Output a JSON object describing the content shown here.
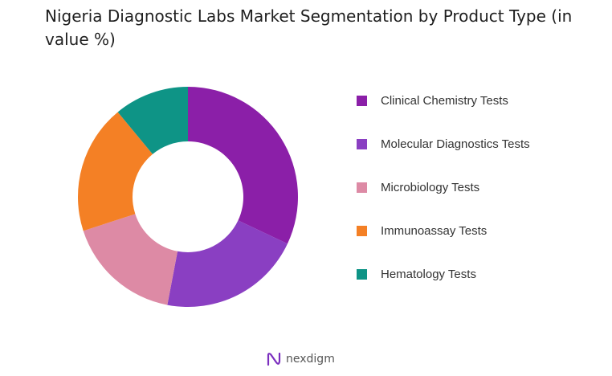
{
  "chart_data": {
    "type": "pie",
    "title": "Nigeria Diagnostic Labs Market Segmentation by Product Type (in value %)",
    "categories": [
      "Clinical Chemistry Tests",
      "Molecular Diagnostics Tests",
      "Microbiology Tests",
      "Immunoassay Tests",
      "Hematology Tests"
    ],
    "values": [
      32,
      21,
      17,
      19,
      11
    ],
    "colors": [
      "#8b1fa8",
      "#8a3fc2",
      "#dd8aa5",
      "#f48025",
      "#0e9486"
    ],
    "donut": true,
    "legend_position": "right"
  },
  "brand": {
    "name": "nexdigm",
    "icon": "nexdigm-logo-icon"
  }
}
